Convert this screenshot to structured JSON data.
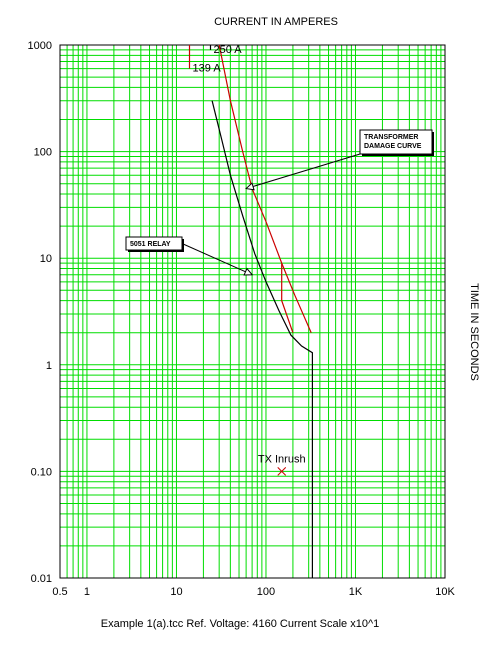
{
  "chart_data": {
    "type": "line",
    "title": "CURRENT IN AMPERES",
    "ylabel": "TIME IN SECONDS",
    "footer": "Example 1(a).tcc   Ref. Voltage: 4160   Current Scale x10^1",
    "x_scale": "log",
    "y_scale": "log",
    "xlim": [
      0.5,
      10000
    ],
    "ylim": [
      0.01,
      1000
    ],
    "x_tick_labels": [
      {
        "v": 0.5,
        "label": "0.5"
      },
      {
        "v": 1,
        "label": "1"
      },
      {
        "v": 10,
        "label": "10"
      },
      {
        "v": 100,
        "label": "100"
      },
      {
        "v": 1000,
        "label": "1K"
      },
      {
        "v": 10000,
        "label": "10K"
      }
    ],
    "y_tick_labels": [
      {
        "v": 1000,
        "label": "1000"
      },
      {
        "v": 100,
        "label": "100"
      },
      {
        "v": 10,
        "label": "10"
      },
      {
        "v": 1,
        "label": "1"
      },
      {
        "v": 0.1,
        "label": "0.10"
      },
      {
        "v": 0.01,
        "label": "0.01"
      }
    ],
    "grid": true,
    "grid_color": "#00dd00",
    "series": [
      {
        "color": "#000000",
        "points": [
          [
            25,
            300
          ],
          [
            32,
            130
          ],
          [
            40,
            60
          ],
          [
            55,
            25
          ],
          [
            75,
            11
          ],
          [
            100,
            6
          ],
          [
            140,
            3.2
          ],
          [
            190,
            1.9
          ],
          [
            250,
            1.5
          ],
          [
            330,
            1.3
          ],
          [
            330,
            0.01
          ]
        ]
      },
      {
        "color": "#cc0000",
        "points": [
          [
            30,
            1000
          ],
          [
            40,
            300
          ],
          [
            55,
            100
          ],
          [
            70,
            45
          ],
          [
            100,
            22
          ],
          [
            150,
            9
          ],
          [
            210,
            4.5
          ],
          [
            320,
            2
          ]
        ]
      },
      {
        "color": "#cc0000",
        "points": [
          [
            150,
            9
          ],
          [
            150,
            4
          ],
          [
            200,
            2
          ]
        ]
      },
      {
        "color": "#cc0000",
        "points": [
          [
            14,
            1000
          ],
          [
            14,
            600
          ]
        ]
      },
      {
        "color": "#000000",
        "points": [
          [
            24,
            1000
          ],
          [
            24,
            900
          ]
        ]
      }
    ],
    "annotations": [
      {
        "text": "250 A",
        "x": 24,
        "y": 900,
        "color": "#000000",
        "type": "label"
      },
      {
        "text": "139 A",
        "x": 14,
        "y": 600,
        "color": "#cc0000",
        "type": "label"
      },
      {
        "text": "TX Inrush",
        "x": 150,
        "y": 0.1,
        "color": "#cc0000",
        "type": "marker"
      },
      {
        "text": "TRANSFORMER\nDAMAGE CURVE",
        "x": 60,
        "y": 45,
        "type": "callout"
      },
      {
        "text": "5051 RELAY",
        "x": 70,
        "y": 7,
        "type": "callout"
      }
    ]
  }
}
